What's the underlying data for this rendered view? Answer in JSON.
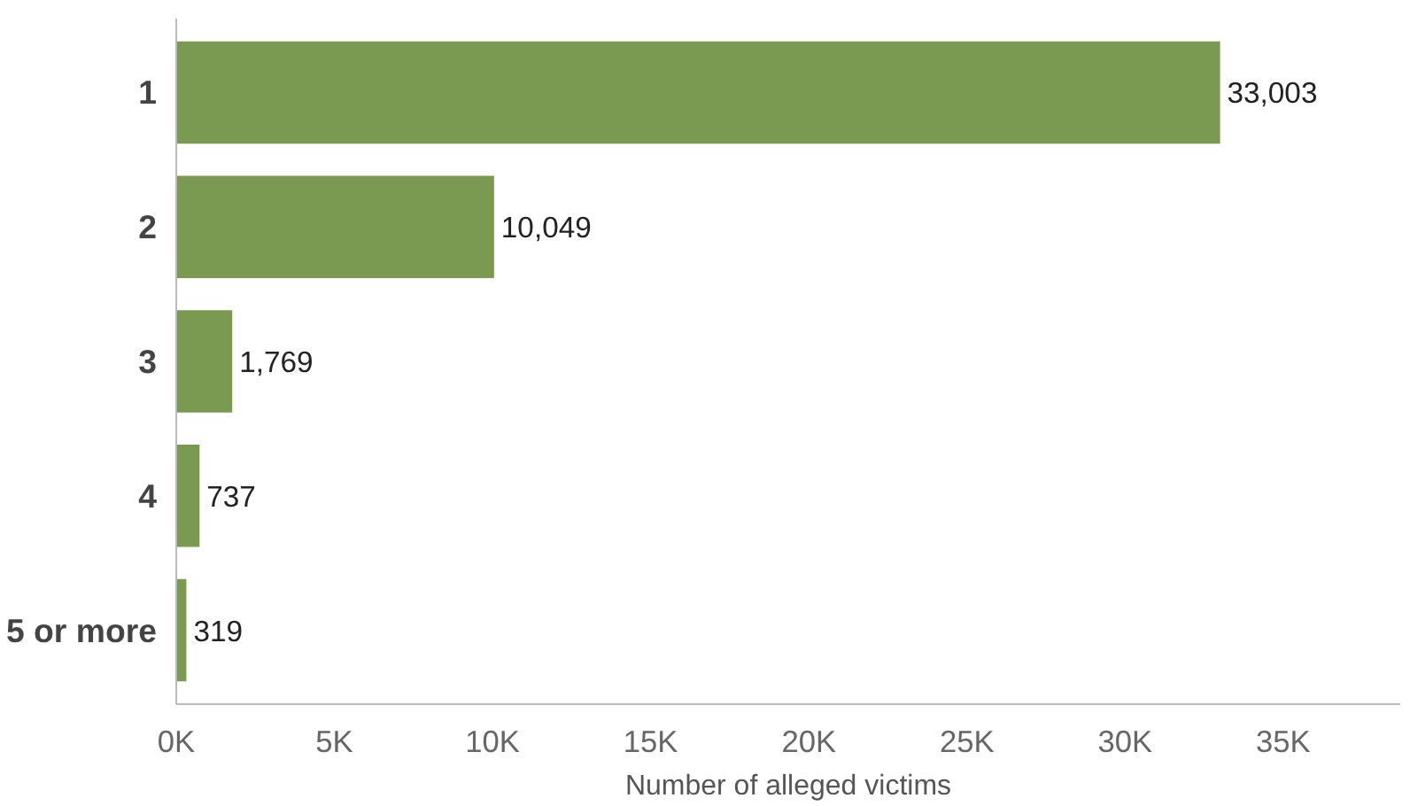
{
  "chart_data": {
    "type": "bar",
    "orientation": "horizontal",
    "xlabel": "Number of alleged victims",
    "categories": [
      "1",
      "2",
      "3",
      "4",
      "5 or more"
    ],
    "values": [
      33003,
      10049,
      1769,
      737,
      319
    ],
    "value_labels": [
      "33,003",
      "10,049",
      "1,769",
      "737",
      "319"
    ],
    "color": "#7a9a52",
    "xlim": [
      0,
      38700
    ],
    "xticks": [
      {
        "value": 0,
        "label": "0K"
      },
      {
        "value": 5000,
        "label": "5K"
      },
      {
        "value": 10000,
        "label": "10K"
      },
      {
        "value": 15000,
        "label": "15K"
      },
      {
        "value": 20000,
        "label": "20K"
      },
      {
        "value": 25000,
        "label": "25K"
      },
      {
        "value": 30000,
        "label": "30K"
      },
      {
        "value": 35000,
        "label": "35K"
      }
    ],
    "grid": false
  }
}
